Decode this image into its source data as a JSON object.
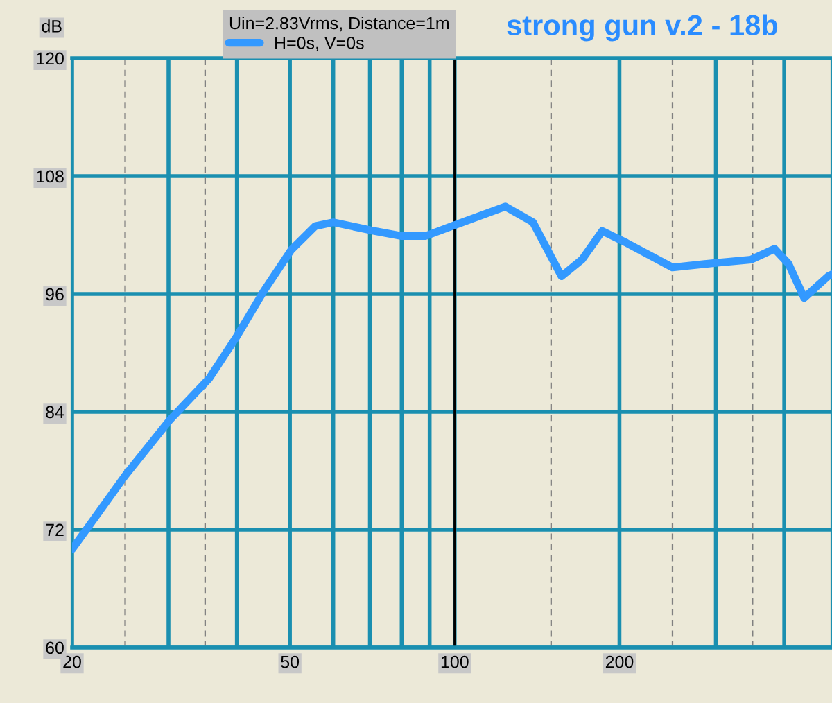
{
  "chart_data": {
    "type": "line",
    "title": "strong gun v.2 - 18b",
    "ylabel": "dB",
    "legend_title": "Uin=2.83Vrms, Distance=1m",
    "legend": "top",
    "log": "x",
    "grid": true,
    "series": [
      {
        "name": "H=0s, V=0s",
        "color": "#3399ff",
        "x": [
          20,
          25,
          30.2,
          35.6,
          39.9,
          44.8,
          50.3,
          55.6,
          60,
          70,
          80,
          88.5,
          98.8,
          123.7,
          139,
          156.7,
          170.8,
          186,
          206,
          250,
          304,
          348,
          384,
          407,
          435,
          481,
          489
        ],
        "values": [
          70.0,
          77.5,
          83.2,
          87.4,
          91.6,
          96.3,
          100.5,
          102.9,
          103.3,
          102.5,
          101.9,
          101.9,
          102.9,
          104.9,
          103.3,
          97.8,
          99.5,
          102.4,
          101.2,
          98.7,
          99.2,
          99.5,
          100.6,
          99.1,
          95.6,
          97.8,
          98.0
        ]
      }
    ],
    "xlim": [
      20,
      489
    ],
    "ylim": [
      60,
      120
    ],
    "xticks": [
      20,
      {
        "value": 30,
        "label": null
      },
      {
        "value": 40,
        "label": null
      },
      50,
      {
        "value": 60,
        "label": null
      },
      {
        "value": 70,
        "label": null
      },
      {
        "value": 80,
        "label": null
      },
      {
        "value": 90,
        "label": null
      },
      100,
      200,
      {
        "value": 300,
        "label": null
      },
      {
        "value": 400,
        "label": null
      }
    ],
    "yticks": [
      60,
      72,
      84,
      96,
      108,
      120
    ],
    "ref_lines": [
      {
        "axis": "x",
        "value": 25,
        "color": "#808080",
        "line_style": "dashed"
      },
      {
        "axis": "x",
        "value": 35,
        "color": "#808080",
        "line_style": "dashed"
      },
      {
        "axis": "x",
        "value": 150,
        "color": "#808080",
        "line_style": "dashed"
      },
      {
        "axis": "x",
        "value": 250,
        "color": "#808080",
        "line_style": "dashed"
      },
      {
        "axis": "x",
        "value": 350,
        "color": "#808080",
        "line_style": "dashed"
      },
      {
        "axis": "x",
        "value": 100,
        "color": "#000000",
        "line_style": "solid"
      }
    ]
  }
}
